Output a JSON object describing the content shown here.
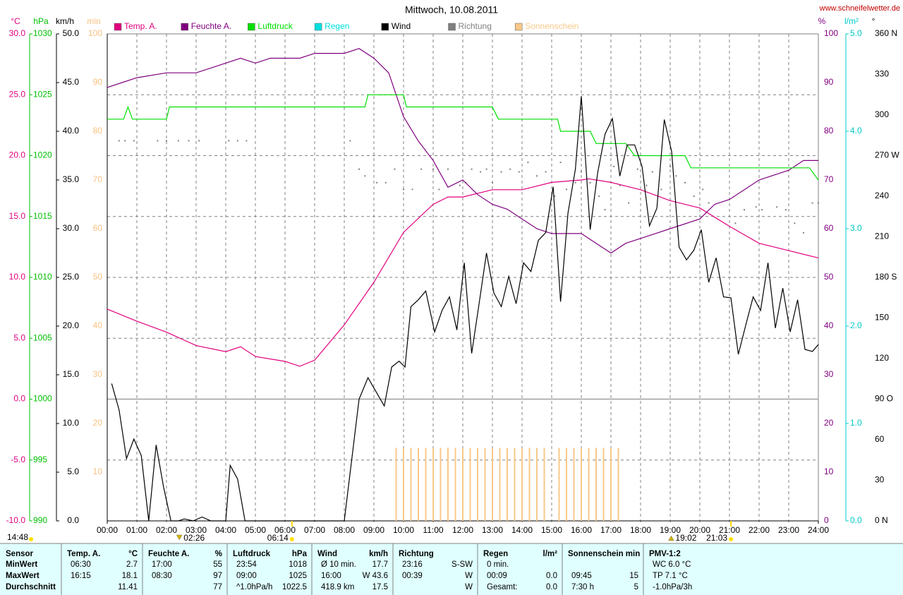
{
  "chart_data": {
    "type": "line",
    "title": "Mittwoch, 10.08.2011",
    "source": "www.schneifelwetter.de",
    "updated": "14:48",
    "xlim": [
      0,
      24
    ],
    "xticks": [
      {
        "value": 0,
        "label": "00:00"
      },
      {
        "value": 1,
        "label": "01:00"
      },
      {
        "value": 2,
        "label": "02:00"
      },
      {
        "value": 3,
        "label": "03:00"
      },
      {
        "value": 4,
        "label": "04:00"
      },
      {
        "value": 5,
        "label": "05:00"
      },
      {
        "value": 6,
        "label": "06:00"
      },
      {
        "value": 7,
        "label": "07:00"
      },
      {
        "value": 8,
        "label": "08:00"
      },
      {
        "value": 9,
        "label": "09:00"
      },
      {
        "value": 10,
        "label": "10:00"
      },
      {
        "value": 11,
        "label": "11:00"
      },
      {
        "value": 12,
        "label": "12:00"
      },
      {
        "value": 13,
        "label": "13:00"
      },
      {
        "value": 14,
        "label": "14:00"
      },
      {
        "value": 15,
        "label": "15:00"
      },
      {
        "value": 16,
        "label": "16:00"
      },
      {
        "value": 17,
        "label": "17:00"
      },
      {
        "value": 18,
        "label": "18:00"
      },
      {
        "value": 19,
        "label": "19:00"
      },
      {
        "value": 20,
        "label": "20:00"
      },
      {
        "value": 21,
        "label": "21:00"
      },
      {
        "value": 22,
        "label": "22:00"
      },
      {
        "value": 23,
        "label": "23:00"
      },
      {
        "value": 24,
        "label": "24:00"
      }
    ],
    "xgrid": true,
    "axes": [
      {
        "title": "°C",
        "color": "#e0007f",
        "grid": true,
        "lim": [
          -10,
          30
        ],
        "ticks": [
          {
            "value": -10,
            "label": "-10.0"
          },
          {
            "value": -5,
            "label": "-5.0"
          },
          {
            "value": 0,
            "label": "0.0"
          },
          {
            "value": 5,
            "label": "5.0"
          },
          {
            "value": 10,
            "label": "10.0"
          },
          {
            "value": 15,
            "label": "15.0"
          },
          {
            "value": 20,
            "label": "20.0"
          },
          {
            "value": 25,
            "label": "25.0"
          },
          {
            "value": 30,
            "label": "30.0"
          }
        ]
      },
      {
        "title": "hPa",
        "color": "#00c000",
        "lim": [
          990,
          1030
        ],
        "ticks": [
          990,
          995,
          1000,
          1005,
          1010,
          1015,
          1020,
          1025,
          1030
        ]
      },
      {
        "title": "km/h",
        "color": "#000000",
        "lim": [
          0,
          50
        ],
        "ticks": [
          {
            "value": 0,
            "label": "0.0"
          },
          {
            "value": 5,
            "label": "5.0"
          },
          {
            "value": 10,
            "label": "10.0"
          },
          {
            "value": 15,
            "label": "15.0"
          },
          {
            "value": 20,
            "label": "20.0"
          },
          {
            "value": 25,
            "label": "25.0"
          },
          {
            "value": 30,
            "label": "30.0"
          },
          {
            "value": 35,
            "label": "35.0"
          },
          {
            "value": 40,
            "label": "40.0"
          },
          {
            "value": 45,
            "label": "45.0"
          },
          {
            "value": 50,
            "label": "50.0"
          }
        ]
      },
      {
        "title": "min",
        "color": "#f8c080",
        "lim": [
          0,
          100
        ],
        "ticks": [
          10,
          20,
          30,
          40,
          50,
          60,
          70,
          80,
          90,
          100
        ]
      },
      {
        "title": "%",
        "color": "#800080",
        "lim": [
          0,
          100
        ],
        "ticks": [
          0,
          10,
          20,
          30,
          40,
          50,
          60,
          70,
          80,
          90,
          100
        ]
      },
      {
        "title": "l/m²",
        "color": "#00c8c8",
        "lim": [
          0,
          5
        ],
        "ticks": [
          {
            "value": 0,
            "label": "0.0"
          },
          {
            "value": 1,
            "label": "1.0"
          },
          {
            "value": 2,
            "label": "2.0"
          },
          {
            "value": 3,
            "label": "3.0"
          },
          {
            "value": 4,
            "label": "4.0"
          },
          {
            "value": 5,
            "label": "5.0"
          }
        ]
      },
      {
        "title": "°",
        "color": "#000000",
        "lim": [
          0,
          360
        ],
        "ticks": [
          {
            "value": 0,
            "label": "0 N"
          },
          30,
          60,
          {
            "value": 90,
            "label": "90 O"
          },
          120,
          150,
          {
            "value": 180,
            "label": "180 S"
          },
          210,
          240,
          {
            "value": 270,
            "label": "270 W"
          },
          300,
          330,
          {
            "value": 360,
            "label": "360 N"
          }
        ]
      }
    ],
    "series": [
      {
        "name": "Temp. A.",
        "color": "#e0007f",
        "type": "line",
        "axis": "°C",
        "x": [
          0,
          1,
          2,
          3,
          4,
          4.5,
          5,
          6,
          6.5,
          7,
          8,
          9,
          10,
          11,
          11.5,
          12,
          13,
          14,
          15,
          16,
          16.25,
          17,
          18,
          19,
          20,
          21,
          22,
          23,
          24
        ],
        "values": [
          7.4,
          6.4,
          5.5,
          4.4,
          3.9,
          4.3,
          3.5,
          3.1,
          2.7,
          3.2,
          6.1,
          9.6,
          13.7,
          16.0,
          16.6,
          16.6,
          17.2,
          17.2,
          17.8,
          18.0,
          18.1,
          17.8,
          17.2,
          16.3,
          15.7,
          14.2,
          12.8,
          12.2,
          11.6
        ]
      },
      {
        "name": "Feuchte A.",
        "color": "#800080",
        "type": "line",
        "axis": "%",
        "x": [
          0,
          0.5,
          1,
          2,
          3,
          3.5,
          4,
          4.5,
          5,
          5.5,
          6.5,
          7,
          8,
          8.5,
          9,
          9.5,
          10,
          10.5,
          11,
          11.5,
          12,
          12.5,
          13,
          13.5,
          14,
          14.5,
          15,
          16,
          16.5,
          17,
          17.5,
          18,
          18.5,
          19,
          20,
          20.5,
          21,
          22,
          23,
          23.5,
          24
        ],
        "values": [
          89,
          90,
          91,
          92,
          92,
          93,
          94,
          95,
          94,
          95,
          95,
          96,
          96,
          97,
          95,
          92,
          83,
          78,
          74,
          68.5,
          70,
          67,
          65,
          64,
          62,
          60,
          59,
          59,
          57,
          55,
          57,
          58,
          59,
          60,
          62,
          65,
          66,
          70,
          72,
          74,
          74
        ]
      },
      {
        "name": "Luftdruck",
        "color": "#00e000",
        "type": "line",
        "axis": "hPa",
        "x": [
          0,
          0.55,
          0.7,
          0.85,
          2,
          2.1,
          8.7,
          8.8,
          10,
          10.1,
          13,
          13.2,
          15.2,
          15.3,
          16.3,
          16.5,
          17.5,
          17.8,
          19.5,
          19.7,
          23.7,
          24
        ],
        "values": [
          1023,
          1023,
          1024,
          1023,
          1023,
          1024,
          1024,
          1025,
          1025,
          1024,
          1024,
          1023,
          1023,
          1022,
          1022,
          1021,
          1021,
          1020,
          1020,
          1019,
          1019,
          1018
        ]
      },
      {
        "name": "Regen",
        "color": "#00e0e0",
        "type": "bar",
        "axis": "l/m²",
        "x": [],
        "values": []
      },
      {
        "name": "Wind",
        "color": "#000000",
        "type": "line",
        "axis": "km/h",
        "x": [
          0.15,
          0.4,
          0.65,
          0.9,
          1.15,
          1.4,
          1.65,
          1.9,
          2.15,
          2.4,
          2.6,
          2.9,
          3.2,
          3.5,
          4.0,
          4.15,
          4.4,
          4.65,
          5,
          6,
          7,
          8,
          8.5,
          8.8,
          9.35,
          9.6,
          9.85,
          10.05,
          10.25,
          10.5,
          10.75,
          11.05,
          11.3,
          11.55,
          11.8,
          12.05,
          12.3,
          12.55,
          12.8,
          13.05,
          13.3,
          13.55,
          13.8,
          14.05,
          14.3,
          14.55,
          14.8,
          15.05,
          15.3,
          15.55,
          15.8,
          16.0,
          16.3,
          16.55,
          16.8,
          17.05,
          17.3,
          17.55,
          17.8,
          18.05,
          18.3,
          18.55,
          18.8,
          19.05,
          19.3,
          19.55,
          19.8,
          20.05,
          20.3,
          20.55,
          20.8,
          21.05,
          21.3,
          21.55,
          21.8,
          22.05,
          22.3,
          22.55,
          22.8,
          23.05,
          23.3,
          23.55,
          23.8,
          24
        ],
        "values": [
          14.1,
          11.4,
          6.4,
          8.4,
          6.7,
          0,
          7.8,
          3.5,
          0,
          0,
          0.2,
          0,
          0.4,
          0,
          0,
          5.7,
          4.3,
          0,
          0,
          0,
          0,
          0,
          12.5,
          14.7,
          11.8,
          15.8,
          16.4,
          15.8,
          22.0,
          22.7,
          23.6,
          19.4,
          21.6,
          23.0,
          19.6,
          26.5,
          17.2,
          22.3,
          27.5,
          23.4,
          22.0,
          25.1,
          22.3,
          26.5,
          25.6,
          28.8,
          29.6,
          34.3,
          22.5,
          31.6,
          36.1,
          43.6,
          29.9,
          35.7,
          39.7,
          41.3,
          35.4,
          38.6,
          38.6,
          36.4,
          30.3,
          32.1,
          41.2,
          37.9,
          28.1,
          26.8,
          27.8,
          29.9,
          24.5,
          27.0,
          23.0,
          22.9,
          17.1,
          20.1,
          23.0,
          21.6,
          26.5,
          19.8,
          23.9,
          19.4,
          22.7,
          17.6,
          17.4,
          18.1
        ]
      },
      {
        "name": "Richtung",
        "color": "#808080",
        "type": "dots",
        "axis": "°",
        "x": [
          0.4,
          0.6,
          0.9,
          1.7,
          2.0,
          2.4,
          2.75,
          3.1,
          4.1,
          4.4,
          4.7,
          8.2,
          8.5,
          8.7,
          9.1,
          9.4,
          9.7,
          10.0,
          10.3,
          10.6,
          11.0,
          11.2,
          11.5,
          11.9,
          12.1,
          12.3,
          12.6,
          12.8,
          13.0,
          13.3,
          13.6,
          13.9,
          14.2,
          14.5,
          14.8,
          15.1,
          15.3,
          15.5,
          15.8,
          16.0,
          16.3,
          16.6,
          16.8,
          17.1,
          17.3,
          17.6,
          17.9,
          18.2,
          18.4,
          18.7,
          19.0,
          19.2,
          19.5,
          19.8,
          20.1,
          20.3,
          21.2,
          21.5,
          21.9,
          22.1,
          22.6,
          22.9,
          23.2,
          23.5,
          23.8,
          24.0
        ],
        "values": [
          281,
          281,
          281,
          281,
          281,
          281,
          281,
          281,
          281,
          281,
          281,
          281,
          260,
          255,
          250,
          250,
          260,
          245,
          245,
          260,
          260,
          245,
          260,
          248,
          250,
          260,
          258,
          260,
          250,
          258,
          260,
          258,
          265,
          255,
          258,
          240,
          265,
          245,
          250,
          258,
          250,
          240,
          230,
          262,
          248,
          235,
          260,
          248,
          258,
          245,
          262,
          255,
          250,
          240,
          245,
          235,
          220,
          230,
          232,
          230,
          232,
          230,
          220,
          213,
          235,
          235
        ]
      },
      {
        "name": "Sonnenschein",
        "color": "#f8c888",
        "type": "bar",
        "axis": "min",
        "x": [
          9.75,
          10,
          10.25,
          10.5,
          10.75,
          11,
          11.25,
          11.5,
          11.75,
          12,
          12.25,
          12.5,
          12.75,
          13,
          13.25,
          13.5,
          13.75,
          14,
          14.25,
          14.5,
          14.75,
          15.25,
          15.5,
          15.75,
          16,
          16.25,
          16.5,
          16.75,
          17,
          17.25
        ],
        "values": [
          15,
          15,
          15,
          15,
          15,
          15,
          15,
          15,
          15,
          15,
          15,
          15,
          15,
          15,
          15,
          15,
          15,
          15,
          15,
          15,
          15,
          15,
          15,
          15,
          15,
          15,
          15,
          15,
          15,
          15
        ]
      }
    ],
    "annotations": [
      {
        "label": "02:26",
        "x": 2.4333,
        "marker": "down"
      },
      {
        "label": "06:14",
        "x": 6.2333,
        "marker": "sun"
      },
      {
        "label": "19:02",
        "x": 19.0333,
        "marker": "up"
      },
      {
        "label": "21:03",
        "x": 21.05,
        "marker": "sun"
      }
    ]
  },
  "table": {
    "header": {
      "label": "Sensor",
      "cells": [
        {
          "left": "Temp. A.",
          "right": "°C"
        },
        {
          "left": "Feuchte A.",
          "right": "%"
        },
        {
          "left": "Luftdruck",
          "right": "hPa"
        },
        {
          "left": "Wind",
          "right": "km/h"
        },
        {
          "left": "Richtung"
        },
        {
          "left": "Regen",
          "right": "l/m²"
        },
        {
          "left": "Sonnenschein min"
        },
        {
          "left": "PMV-1:2"
        }
      ]
    },
    "rows": [
      {
        "label": "MinWert",
        "cells": [
          {
            "left": "06:30",
            "right": "2.7"
          },
          {
            "left": "17:00",
            "right": "55"
          },
          {
            "left": "23:54",
            "right": "1018"
          },
          {
            "left": "Ø 10 min.",
            "right": "17.7"
          },
          {
            "left": "23:16",
            "right": "S-SW"
          },
          {
            "left": "0 min."
          },
          null,
          {
            "left": "WC 6.0 °C"
          }
        ]
      },
      {
        "label": "MaxWert",
        "cells": [
          {
            "left": "16:15",
            "right": "18.1"
          },
          {
            "left": "08:30",
            "right": "97"
          },
          {
            "left": "09:00",
            "right": "1025"
          },
          {
            "left": "16:00",
            "right": "W 43.6"
          },
          {
            "left": "00:39",
            "right": "W"
          },
          {
            "left": "00:09",
            "right": "0.0"
          },
          {
            "left": "09:45",
            "right": "15"
          },
          {
            "left": "TP 7.1 °C"
          }
        ]
      },
      {
        "label": "Durchschnitt",
        "cells": [
          {
            "right": "11.41"
          },
          {
            "right": "77"
          },
          {
            "left": "^1.0hPa/h",
            "right": "1022.5"
          },
          {
            "left": "418.9 km",
            "right": "17.5"
          },
          {
            "right": "W"
          },
          {
            "left": "Gesamt:",
            "right": "0.0"
          },
          {
            "left": "7:30 h",
            "right": "5"
          },
          {
            "left": "-1.0hPa/3h"
          }
        ]
      }
    ]
  }
}
